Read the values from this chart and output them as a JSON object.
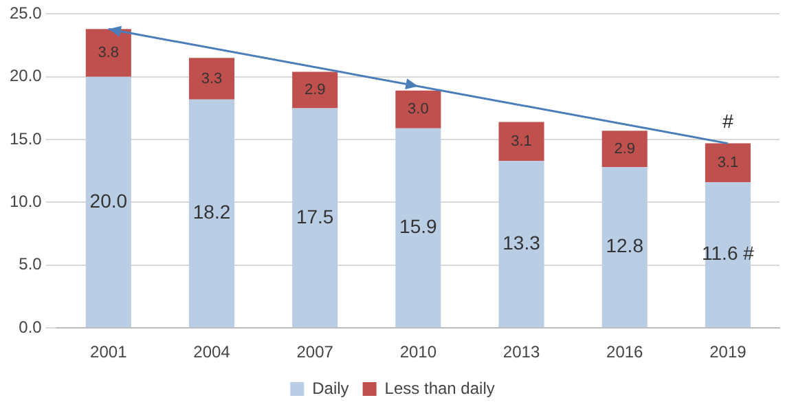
{
  "chart_data": {
    "type": "bar",
    "stacked": true,
    "categories": [
      "2001",
      "2004",
      "2007",
      "2010",
      "2013",
      "2016",
      "2019"
    ],
    "series": [
      {
        "name": "Daily",
        "color": "#b9cde5",
        "values": [
          20.0,
          18.2,
          17.5,
          15.9,
          13.3,
          12.8,
          11.6
        ],
        "value_labels": [
          "20.0",
          "18.2",
          "17.5",
          "15.9",
          "13.3",
          "12.8",
          "11.6 #"
        ]
      },
      {
        "name": "Less than daily",
        "color": "#c0504d",
        "values": [
          3.8,
          3.3,
          2.9,
          3.0,
          3.1,
          2.9,
          3.1
        ],
        "value_labels": [
          "3.8",
          "3.3",
          "2.9",
          "3.0",
          "3.1",
          "2.9",
          "3.1"
        ]
      }
    ],
    "ylim": [
      0,
      25
    ],
    "yticks": [
      {
        "value": 0,
        "label": "0.0"
      },
      {
        "value": 5,
        "label": "5.0"
      },
      {
        "value": 10,
        "label": "10.0"
      },
      {
        "value": 15,
        "label": "15.0"
      },
      {
        "value": 20,
        "label": "20.0"
      },
      {
        "value": 25,
        "label": "25.0"
      }
    ],
    "grid": "y",
    "legend": "bottom",
    "annotations": [
      {
        "text": "#",
        "x": "2019",
        "y": 14.7
      }
    ]
  }
}
